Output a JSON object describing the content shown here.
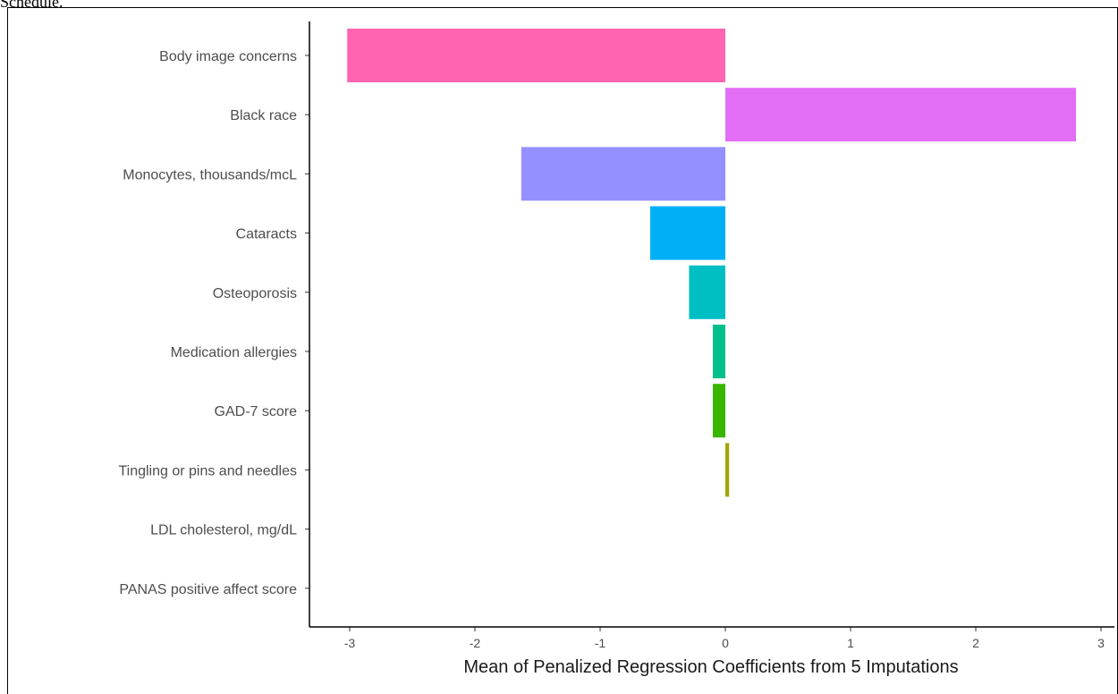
{
  "header": {
    "partial_text": "Schedule."
  },
  "chart_data": {
    "type": "bar",
    "orientation": "horizontal",
    "categories": [
      "Body image concerns",
      "Black race",
      "Monocytes, thousands/mcL",
      "Cataracts",
      "Osteoporosis",
      "Medication allergies",
      "GAD-7 score",
      "Tingling or pins and needles",
      "LDL cholesterol, mg/dL",
      "PANAS positive affect score"
    ],
    "values": [
      -3.02,
      2.8,
      -1.63,
      -0.6,
      -0.29,
      -0.1,
      -0.1,
      0.03,
      0.0,
      0.0
    ],
    "colors": [
      "#ff64b0",
      "#e36ef6",
      "#9590ff",
      "#00b0f6",
      "#00bfc4",
      "#00c08b",
      "#39b600",
      "#a3a500",
      "#d89000",
      "#f8766d"
    ],
    "xlim": [
      -3.3,
      3.0
    ],
    "xticks": [
      -3,
      -2,
      -1,
      0,
      1,
      2,
      3
    ],
    "xtick_labels": [
      "-3",
      "-2",
      "-1",
      "0",
      "1",
      "2",
      "3"
    ],
    "xlabel": "Mean of Penalized Regression Coefficients from 5 Imputations",
    "ylabel": "",
    "title": "",
    "legend": "none",
    "grid": false
  }
}
